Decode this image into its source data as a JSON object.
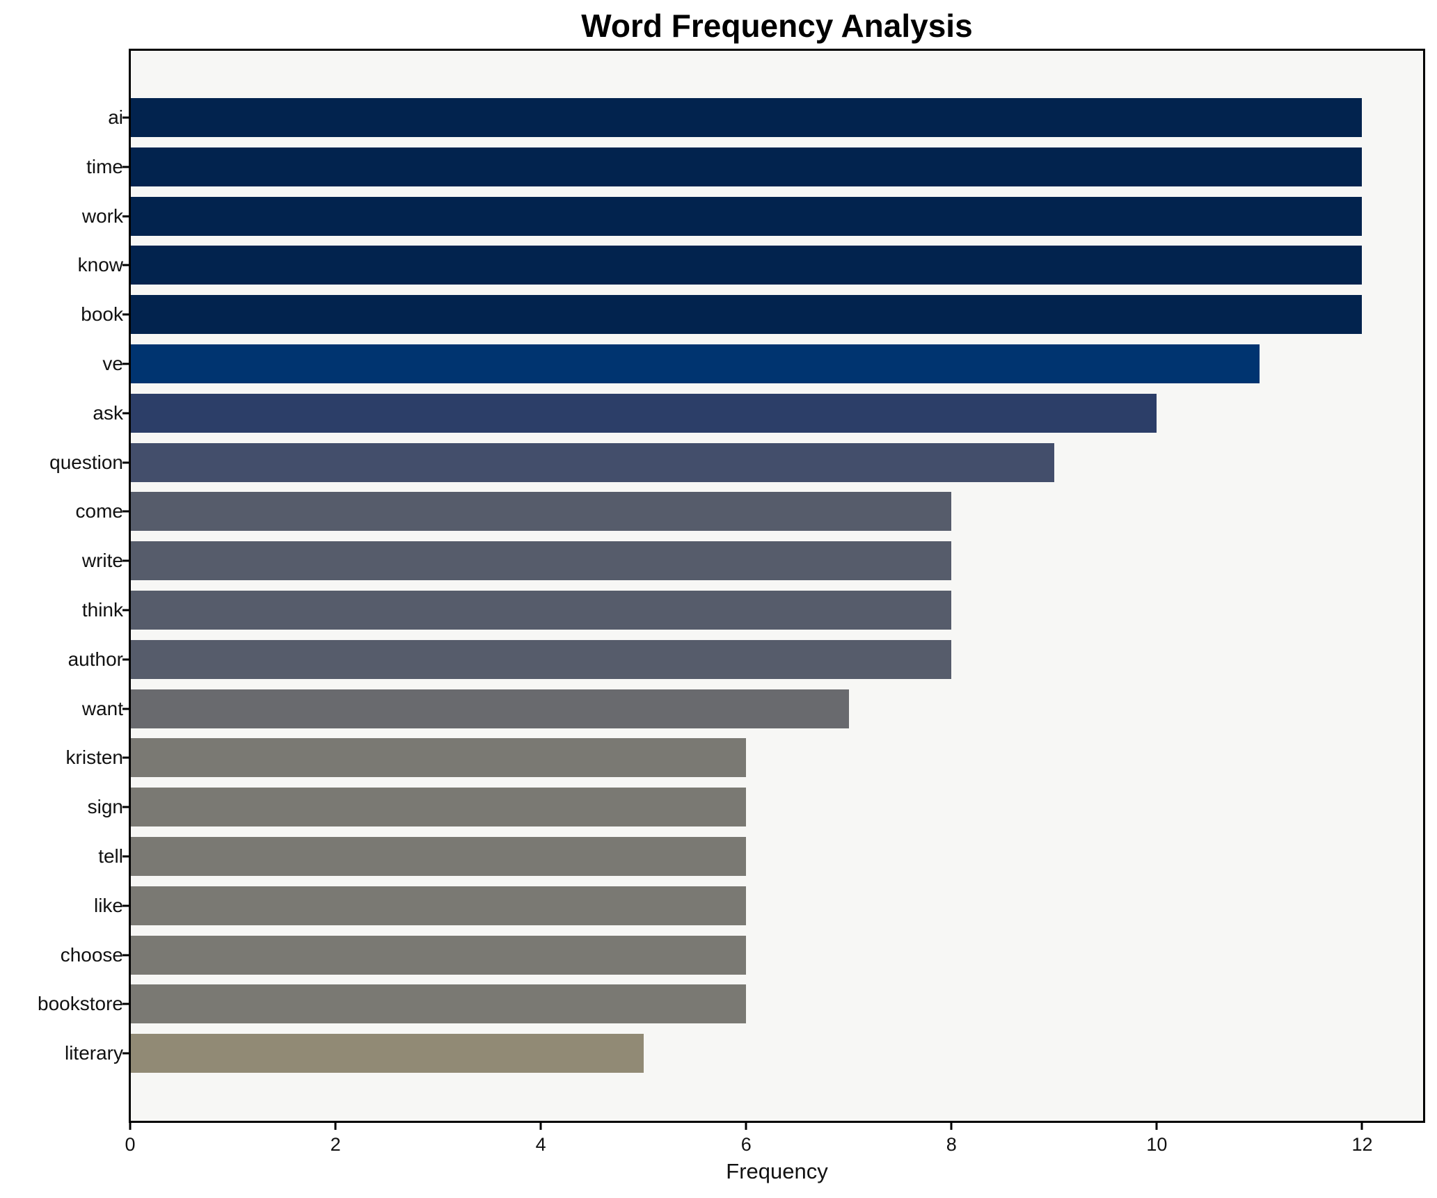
{
  "chart_data": {
    "type": "bar",
    "orientation": "horizontal",
    "title": "Word Frequency Analysis",
    "xlabel": "Frequency",
    "ylabel": "",
    "categories": [
      "ai",
      "time",
      "work",
      "know",
      "book",
      "ve",
      "ask",
      "question",
      "come",
      "write",
      "think",
      "author",
      "want",
      "kristen",
      "sign",
      "tell",
      "like",
      "choose",
      "bookstore",
      "literary"
    ],
    "values": [
      12,
      12,
      12,
      12,
      12,
      11,
      10,
      9,
      8,
      8,
      8,
      8,
      7,
      6,
      6,
      6,
      6,
      6,
      6,
      5
    ],
    "bar_colors": [
      "#02234e",
      "#02234e",
      "#02234e",
      "#02234e",
      "#02234e",
      "#003470",
      "#2c3e68",
      "#434e6b",
      "#565c6b",
      "#565c6b",
      "#565c6b",
      "#565c6b",
      "#696a6e",
      "#7a7973",
      "#7a7973",
      "#7a7973",
      "#7a7973",
      "#7a7973",
      "#7a7973",
      "#918a75"
    ],
    "xlim": [
      0,
      12.6
    ],
    "xticks": [
      0,
      2,
      4,
      6,
      8,
      10,
      12
    ],
    "xtick_labels": [
      "0",
      "2",
      "4",
      "6",
      "8",
      "10",
      "12"
    ],
    "grid": false,
    "legend": null,
    "plot_background": "#f7f7f5",
    "figure_background": "#ffffff",
    "title_color": "#000000"
  }
}
